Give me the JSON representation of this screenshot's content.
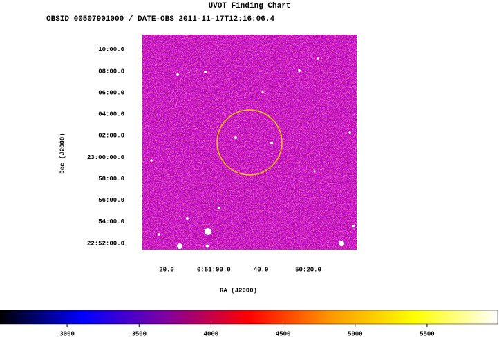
{
  "chart_data": {
    "type": "image",
    "title": "UVOT Finding Chart",
    "subtitle": "OBSID 00507901000 / DATE-OBS 2011-11-17T12:16:06.4",
    "xlabel": "RA (J2000)",
    "ylabel": "Dec (J2000)",
    "xlim": [
      12.876,
      12.498
    ],
    "xticks": [
      {
        "value": 12.8333,
        "label": "20.0"
      },
      {
        "value": 12.75,
        "label": "0:51:00.0"
      },
      {
        "value": 12.6667,
        "label": "40.0"
      },
      {
        "value": 12.5833,
        "label": "50:20.0"
      }
    ],
    "ylim": [
      22.857,
      23.19
    ],
    "yticks": [
      {
        "value": 23.1667,
        "label": "10:00.0"
      },
      {
        "value": 23.1333,
        "label": "08:00.0"
      },
      {
        "value": 23.1,
        "label": "06:00.0"
      },
      {
        "value": 23.0667,
        "label": "04:00.0"
      },
      {
        "value": 23.0333,
        "label": "02:00.0"
      },
      {
        "value": 23.0,
        "label": "23:00:00.0"
      },
      {
        "value": 22.9667,
        "label": "58:00.0"
      },
      {
        "value": 22.9333,
        "label": "56:00.0"
      },
      {
        "value": 22.9,
        "label": "54:00.0"
      },
      {
        "value": 22.8667,
        "label": "22:52:00.0"
      }
    ],
    "colorbar": {
      "lim": [
        2534,
        5990
      ],
      "ticks": [
        3000,
        3500,
        4000,
        4500,
        5000,
        5500
      ],
      "colormap": [
        "#000000",
        "#0000ff",
        "#8000a0",
        "#ff0000",
        "#ff9900",
        "#ffff00",
        "#ffffff"
      ]
    }
  }
}
